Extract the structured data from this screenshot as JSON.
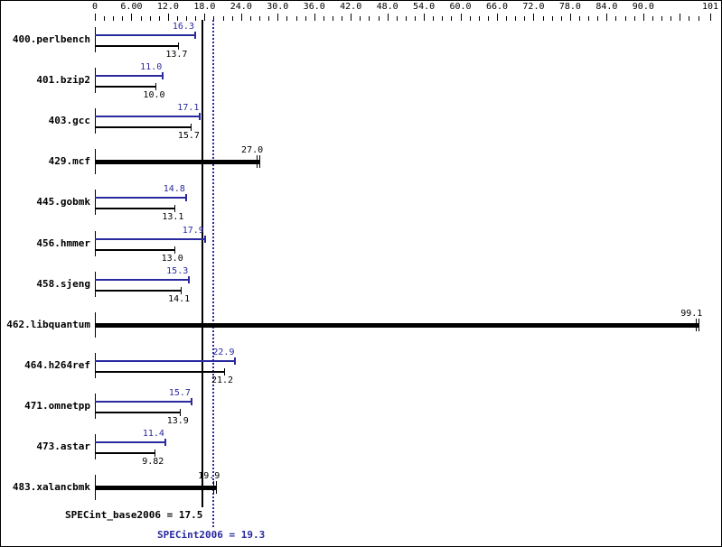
{
  "chart_data": {
    "type": "bar",
    "orientation": "horizontal",
    "title": "",
    "xlabel": "",
    "ylabel": "",
    "xlim": [
      0,
      101
    ],
    "x_tick_labels": [
      "0",
      "6.00",
      "12.0",
      "18.0",
      "24.0",
      "30.0",
      "36.0",
      "42.0",
      "48.0",
      "54.0",
      "60.0",
      "66.0",
      "72.0",
      "78.0",
      "84.0",
      "90.0",
      "101"
    ],
    "x_tick_values": [
      0,
      6,
      12,
      18,
      24,
      30,
      36,
      42,
      48,
      54,
      60,
      66,
      72,
      78,
      84,
      90,
      101
    ],
    "grid": false,
    "categories": [
      "400.perlbench",
      "401.bzip2",
      "403.gcc",
      "429.mcf",
      "445.gobmk",
      "456.hmmer",
      "458.sjeng",
      "462.libquantum",
      "464.h264ref",
      "471.omnetpp",
      "473.astar",
      "483.xalancbmk"
    ],
    "series": [
      {
        "name": "SPECint2006 (peak)",
        "color": "#2a2aa0",
        "values": [
          16.3,
          11.0,
          17.1,
          27.0,
          14.8,
          17.9,
          15.3,
          99.1,
          22.9,
          15.7,
          11.4,
          19.9
        ]
      },
      {
        "name": "SPECint_base2006 (base)",
        "color": "#000000",
        "values": [
          13.7,
          10.0,
          15.7,
          27.0,
          13.1,
          13.0,
          14.1,
          99.1,
          21.2,
          13.9,
          9.82,
          19.9
        ]
      }
    ],
    "rows": [
      {
        "name": "400.perlbench",
        "peak": "16.3",
        "base": "13.7",
        "combined": false
      },
      {
        "name": "401.bzip2",
        "peak": "11.0",
        "base": "10.0",
        "combined": false
      },
      {
        "name": "403.gcc",
        "peak": "17.1",
        "base": "15.7",
        "combined": false
      },
      {
        "name": "429.mcf",
        "peak": "27.0",
        "base": "27.0",
        "combined": true,
        "label": "27.0"
      },
      {
        "name": "445.gobmk",
        "peak": "14.8",
        "base": "13.1",
        "combined": false
      },
      {
        "name": "456.hmmer",
        "peak": "17.9",
        "base": "13.0",
        "combined": false
      },
      {
        "name": "458.sjeng",
        "peak": "15.3",
        "base": "14.1",
        "combined": false
      },
      {
        "name": "462.libquantum",
        "peak": "99.1",
        "base": "99.1",
        "combined": true,
        "label": "99.1"
      },
      {
        "name": "464.h264ref",
        "peak": "22.9",
        "base": "21.2",
        "combined": false
      },
      {
        "name": "471.omnetpp",
        "peak": "15.7",
        "base": "13.9",
        "combined": false
      },
      {
        "name": "473.astar",
        "peak": "11.4",
        "base": "9.82",
        "combined": false
      },
      {
        "name": "483.xalancbmk",
        "peak": "19.9",
        "base": "19.9",
        "combined": true,
        "label": "19.9"
      }
    ],
    "reference_lines": [
      {
        "name": "SPECint_base2006",
        "value": 17.5,
        "style": "solid",
        "color": "#000000"
      },
      {
        "name": "SPECint2006",
        "value": 19.3,
        "style": "dotted",
        "color": "#2a2aa0"
      }
    ]
  },
  "summary": {
    "base_label": "SPECint_base2006 = 17.5",
    "peak_label": "SPECint2006 = 19.3"
  }
}
